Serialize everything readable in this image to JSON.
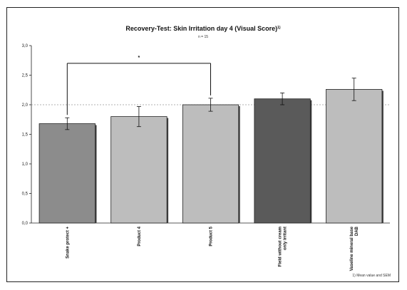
{
  "chart_data": {
    "type": "bar",
    "title": "Recovery-Test: Skin Irritation day 4 (Visual Score)",
    "title_marker": "1)",
    "subtitle": "n = 15",
    "categories": [
      "Snake protect +",
      "Product 4",
      "Product 5",
      "Field without cream only irritant",
      "Vaseline mineral base DAB"
    ],
    "category_lines": [
      [
        "Snake protect +"
      ],
      [
        "Product 4"
      ],
      [
        "Product 5"
      ],
      [
        "Field without cream",
        "only irritant"
      ],
      [
        "Vaseline mineral base",
        "DAB"
      ]
    ],
    "values": [
      1.68,
      1.8,
      2.0,
      2.1,
      2.26
    ],
    "error": [
      0.1,
      0.17,
      0.11,
      0.1,
      0.19
    ],
    "bar_colors": [
      "#8c8c8c",
      "#bdbdbd",
      "#bdbdbd",
      "#5a5a5a",
      "#bdbdbd"
    ],
    "ylim": [
      0,
      3
    ],
    "yticks": [
      "0,0",
      "0,5",
      "1,0",
      "1,5",
      "2,0",
      "2,5",
      "3,0"
    ],
    "reference_line": 2.0,
    "significance": {
      "from": 0,
      "to": 2,
      "label": "*"
    },
    "grid": false,
    "footnote": "1) Mean value and SEM"
  }
}
